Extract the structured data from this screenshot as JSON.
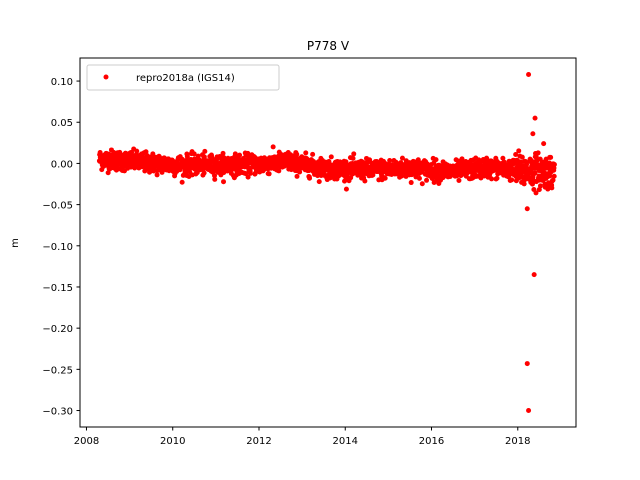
{
  "chart_data": {
    "type": "scatter",
    "title": "P778 V",
    "xlabel": "",
    "ylabel": "m",
    "xlim": [
      2007.85,
      2019.35
    ],
    "ylim": [
      -0.32,
      0.128
    ],
    "xticks": [
      2008,
      2010,
      2012,
      2014,
      2016,
      2018
    ],
    "xtick_labels": [
      "2008",
      "2010",
      "2012",
      "2014",
      "2016",
      "2018"
    ],
    "yticks": [
      0.1,
      0.05,
      0.0,
      -0.05,
      -0.1,
      -0.15,
      -0.2,
      -0.25,
      -0.3
    ],
    "ytick_labels": [
      "0.10",
      "0.05",
      "0.00",
      "−0.05",
      "−0.10",
      "−0.15",
      "−0.20",
      "−0.25",
      "−0.30"
    ],
    "grid": false,
    "legend_position": "top-left",
    "series": [
      {
        "name": "repro2018a (IGS14)",
        "color": "#ff0000",
        "marker": "circle",
        "x_range": [
          2008.3,
          2018.85
        ],
        "trend": [
          [
            2008.3,
            0.005
          ],
          [
            2009.0,
            0.003
          ],
          [
            2010.0,
            -0.002
          ],
          [
            2011.0,
            -0.002
          ],
          [
            2012.0,
            -0.001
          ],
          [
            2012.7,
            0.002
          ],
          [
            2013.5,
            -0.006
          ],
          [
            2014.5,
            -0.008
          ],
          [
            2015.5,
            -0.006
          ],
          [
            2016.5,
            -0.01
          ],
          [
            2017.3,
            -0.005
          ],
          [
            2018.0,
            -0.008
          ],
          [
            2018.85,
            -0.01
          ]
        ],
        "scatter_sd": 0.006,
        "outliers": [
          {
            "x": 2018.25,
            "y": 0.108
          },
          {
            "x": 2018.4,
            "y": 0.055
          },
          {
            "x": 2018.35,
            "y": 0.036
          },
          {
            "x": 2018.6,
            "y": 0.024
          },
          {
            "x": 2018.22,
            "y": -0.055
          },
          {
            "x": 2018.38,
            "y": -0.135
          },
          {
            "x": 2018.22,
            "y": -0.243
          },
          {
            "x": 2018.25,
            "y": -0.3
          }
        ]
      }
    ]
  }
}
